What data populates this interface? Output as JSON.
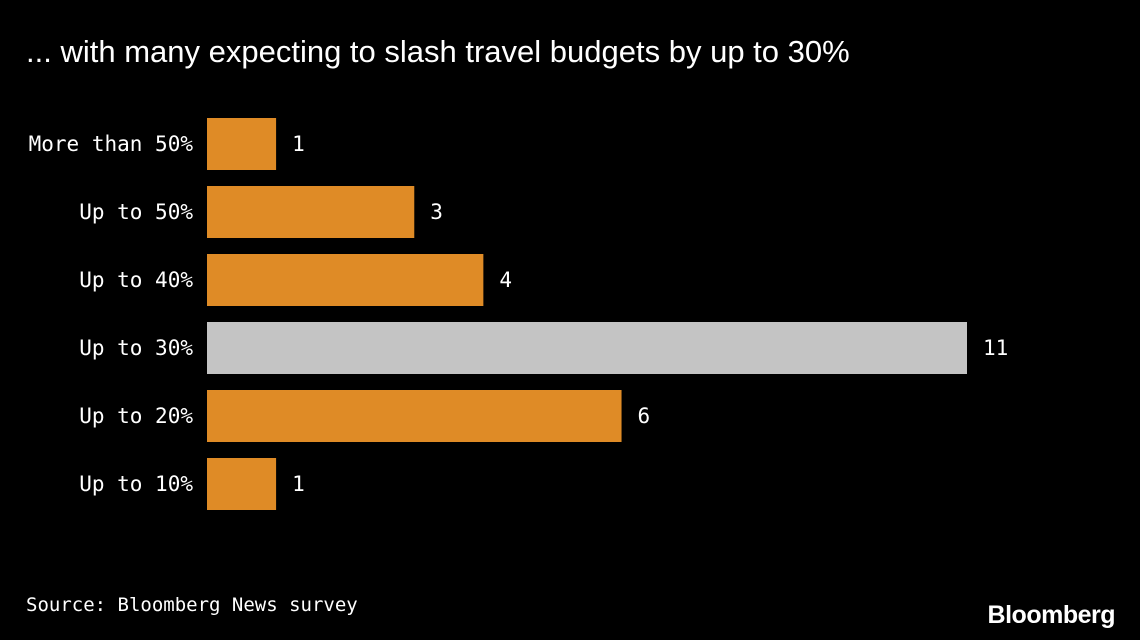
{
  "title": "... with many expecting to slash travel budgets by up to 30%",
  "source": "Source: Bloomberg News survey",
  "logo": "Bloomberg",
  "colors": {
    "background": "#000000",
    "bar": "#df8b26",
    "highlight_bar": "#c4c4c4",
    "text": "#ffffff"
  },
  "chart_data": {
    "type": "bar",
    "orientation": "horizontal",
    "categories": [
      "More than 50%",
      "Up to 50%",
      "Up to 40%",
      "Up to 30%",
      "Up to 20%",
      "Up to 10%"
    ],
    "values": [
      1,
      3,
      4,
      11,
      6,
      1
    ],
    "highlight": "Up to 30%",
    "data_labels": [
      "1",
      "3",
      "4",
      "11",
      "6",
      "1"
    ],
    "xlim": [
      0,
      11
    ],
    "grid": false,
    "legend": "none"
  }
}
